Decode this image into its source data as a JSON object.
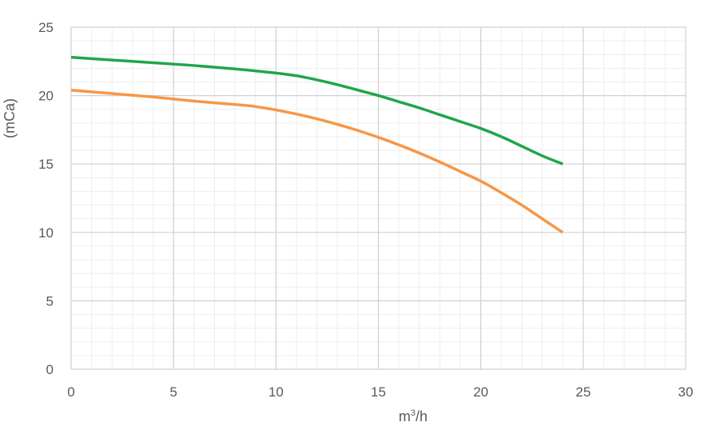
{
  "chart_data": {
    "type": "line",
    "title": "",
    "xlabel_base": "m",
    "xlabel_sup": "3",
    "xlabel_rest": "/h",
    "ylabel": "(mCa)",
    "xlim": [
      0,
      30
    ],
    "ylim": [
      0,
      25
    ],
    "x_ticks": [
      "0",
      "5",
      "10",
      "15",
      "20",
      "25",
      "30"
    ],
    "y_ticks": [
      "0",
      "5",
      "10",
      "15",
      "20",
      "25"
    ],
    "x_tick_values": [
      0,
      5,
      10,
      15,
      20,
      25,
      30
    ],
    "y_tick_values": [
      0,
      5,
      10,
      15,
      20,
      25
    ],
    "grid": true,
    "series": [
      {
        "color": "#1fa64a",
        "x": [
          0,
          2,
          4,
          6,
          8,
          10,
          11,
          12,
          13,
          14,
          15,
          16,
          17,
          18,
          19,
          20,
          21,
          22,
          23,
          24
        ],
        "values": [
          22.8,
          22.6,
          22.4,
          22.2,
          21.95,
          21.65,
          21.45,
          21.15,
          20.8,
          20.4,
          20.0,
          19.55,
          19.1,
          18.6,
          18.1,
          17.6,
          17.0,
          16.3,
          15.6,
          15.0
        ]
      },
      {
        "color": "#f79646",
        "x": [
          0,
          2,
          4,
          6,
          8,
          9,
          10,
          11,
          12,
          13,
          14,
          15,
          16,
          17,
          18,
          19,
          20,
          21,
          22,
          23,
          24
        ],
        "values": [
          20.4,
          20.15,
          19.9,
          19.6,
          19.35,
          19.2,
          18.95,
          18.65,
          18.3,
          17.9,
          17.45,
          16.95,
          16.4,
          15.8,
          15.15,
          14.45,
          13.75,
          12.9,
          12.0,
          11.0,
          10.0
        ]
      }
    ]
  }
}
